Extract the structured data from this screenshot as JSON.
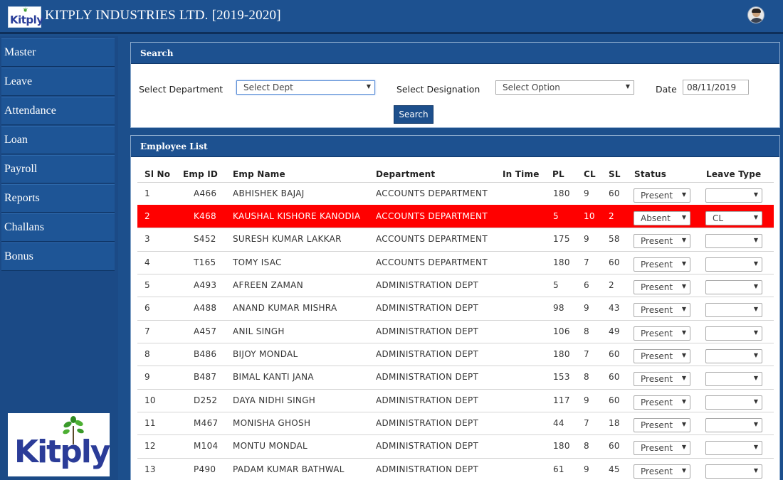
{
  "header": {
    "logo_text": "Kitply",
    "title": "KITPLY INDUSTRIES LTD. [2019-2020]"
  },
  "sidebar": {
    "items": [
      {
        "label": "Master"
      },
      {
        "label": "Leave"
      },
      {
        "label": "Attendance"
      },
      {
        "label": "Loan"
      },
      {
        "label": "Payroll"
      },
      {
        "label": "Reports"
      },
      {
        "label": "Challans"
      },
      {
        "label": "Bonus"
      }
    ],
    "logo_text": "Kitply"
  },
  "search": {
    "title": "Search",
    "department_label": "Select Department",
    "department_value": "Select Dept",
    "designation_label": "Select Designation",
    "designation_value": "Select Option",
    "date_label": "Date",
    "date_value": "08/11/2019",
    "button_label": "Search"
  },
  "employee_list": {
    "title": "Employee List",
    "columns": [
      "Sl No",
      "Emp ID",
      "Emp Name",
      "Department",
      "In Time",
      "PL",
      "CL",
      "SL",
      "Status",
      "Leave Type"
    ],
    "highlight_color": "#ff0000",
    "rows": [
      {
        "sl": "1",
        "emp_id": "A466",
        "name": "ABHISHEK BAJAJ",
        "dept": "ACCOUNTS DEPARTMENT",
        "in_time": "",
        "pl": "180",
        "cl": "9",
        "sl_days": "60",
        "status": "Present",
        "leave_type": "",
        "highlighted": false
      },
      {
        "sl": "2",
        "emp_id": "K468",
        "name": "KAUSHAL KISHORE KANODIA",
        "dept": "ACCOUNTS DEPARTMENT",
        "in_time": "",
        "pl": "5",
        "cl": "10",
        "sl_days": "2",
        "status": "Absent",
        "leave_type": "CL",
        "highlighted": true
      },
      {
        "sl": "3",
        "emp_id": "S452",
        "name": "SURESH KUMAR LAKKAR",
        "dept": "ACCOUNTS DEPARTMENT",
        "in_time": "",
        "pl": "175",
        "cl": "9",
        "sl_days": "58",
        "status": "Present",
        "leave_type": "",
        "highlighted": false
      },
      {
        "sl": "4",
        "emp_id": "T165",
        "name": "TOMY ISAC",
        "dept": "ACCOUNTS DEPARTMENT",
        "in_time": "",
        "pl": "180",
        "cl": "7",
        "sl_days": "60",
        "status": "Present",
        "leave_type": "",
        "highlighted": false
      },
      {
        "sl": "5",
        "emp_id": "A493",
        "name": "AFREEN ZAMAN",
        "dept": "ADMINISTRATION DEPT",
        "in_time": "",
        "pl": "5",
        "cl": "6",
        "sl_days": "2",
        "status": "Present",
        "leave_type": "",
        "highlighted": false
      },
      {
        "sl": "6",
        "emp_id": "A488",
        "name": "ANAND KUMAR MISHRA",
        "dept": "ADMINISTRATION DEPT",
        "in_time": "",
        "pl": "98",
        "cl": "9",
        "sl_days": "43",
        "status": "Present",
        "leave_type": "",
        "highlighted": false
      },
      {
        "sl": "7",
        "emp_id": "A457",
        "name": "ANIL SINGH",
        "dept": "ADMINISTRATION DEPT",
        "in_time": "",
        "pl": "106",
        "cl": "8",
        "sl_days": "49",
        "status": "Present",
        "leave_type": "",
        "highlighted": false
      },
      {
        "sl": "8",
        "emp_id": "B486",
        "name": "BIJOY MONDAL",
        "dept": "ADMINISTRATION DEPT",
        "in_time": "",
        "pl": "180",
        "cl": "7",
        "sl_days": "60",
        "status": "Present",
        "leave_type": "",
        "highlighted": false
      },
      {
        "sl": "9",
        "emp_id": "B487",
        "name": "BIMAL KANTI JANA",
        "dept": "ADMINISTRATION DEPT",
        "in_time": "",
        "pl": "153",
        "cl": "8",
        "sl_days": "60",
        "status": "Present",
        "leave_type": "",
        "highlighted": false
      },
      {
        "sl": "10",
        "emp_id": "D252",
        "name": "DAYA NIDHI SINGH",
        "dept": "ADMINISTRATION DEPT",
        "in_time": "",
        "pl": "117",
        "cl": "9",
        "sl_days": "60",
        "status": "Present",
        "leave_type": "",
        "highlighted": false
      },
      {
        "sl": "11",
        "emp_id": "M467",
        "name": "MONISHA GHOSH",
        "dept": "ADMINISTRATION DEPT",
        "in_time": "",
        "pl": "44",
        "cl": "7",
        "sl_days": "18",
        "status": "Present",
        "leave_type": "",
        "highlighted": false
      },
      {
        "sl": "12",
        "emp_id": "M104",
        "name": "MONTU MONDAL",
        "dept": "ADMINISTRATION DEPT",
        "in_time": "",
        "pl": "180",
        "cl": "8",
        "sl_days": "60",
        "status": "Present",
        "leave_type": "",
        "highlighted": false
      },
      {
        "sl": "13",
        "emp_id": "P490",
        "name": "PADAM KUMAR BATHWAL",
        "dept": "ADMINISTRATION DEPT",
        "in_time": "",
        "pl": "61",
        "cl": "9",
        "sl_days": "45",
        "status": "Present",
        "leave_type": "",
        "highlighted": false
      }
    ]
  }
}
